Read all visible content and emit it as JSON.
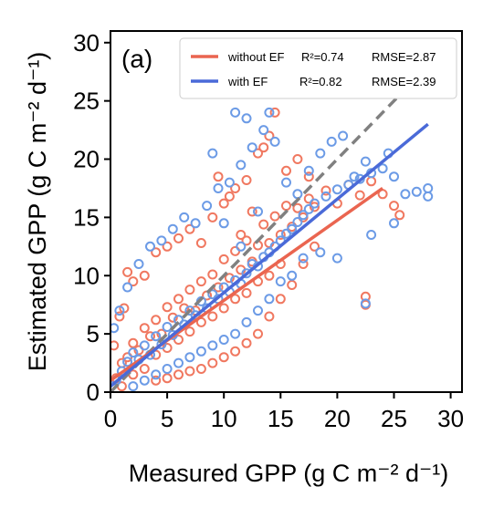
{
  "chart_data": {
    "type": "scatter",
    "panel_label": "(a)",
    "xlabel": "Measured GPP (g C m⁻² d⁻¹)",
    "ylabel": "Estimated GPP (g C m⁻² d⁻¹)",
    "xlim": [
      0,
      31
    ],
    "ylim": [
      0,
      31
    ],
    "xticks": [
      0,
      5,
      10,
      15,
      20,
      25,
      30
    ],
    "yticks": [
      0,
      5,
      10,
      15,
      20,
      25,
      30
    ],
    "grid": false,
    "legend_position": "top-right",
    "series": [
      {
        "name": "without EF",
        "r2_text": "R²=0.74",
        "rmse_text": "RMSE=2.87",
        "color": "#f07860",
        "marker": "open-circle",
        "fit_line": {
          "x": [
            0,
            24
          ],
          "y": [
            1.0,
            17.5
          ]
        },
        "points": [
          [
            0.5,
            1.2
          ],
          [
            1.0,
            2.5
          ],
          [
            1.5,
            3.0
          ],
          [
            2.0,
            4.2
          ],
          [
            2.5,
            3.6
          ],
          [
            3.0,
            5.5
          ],
          [
            3.5,
            4.8
          ],
          [
            4.0,
            6.2
          ],
          [
            4.5,
            5.0
          ],
          [
            5.0,
            7.3
          ],
          [
            5.5,
            6.4
          ],
          [
            6.0,
            8.0
          ],
          [
            6.5,
            7.2
          ],
          [
            7.0,
            8.8
          ],
          [
            7.5,
            7.0
          ],
          [
            8.0,
            9.5
          ],
          [
            8.5,
            8.3
          ],
          [
            9.0,
            10.1
          ],
          [
            9.5,
            9.0
          ],
          [
            10.0,
            11.4
          ],
          [
            10.5,
            9.8
          ],
          [
            11.0,
            12.1
          ],
          [
            11.5,
            10.5
          ],
          [
            12.0,
            13.0
          ],
          [
            12.5,
            11.2
          ],
          [
            13.0,
            12.6
          ],
          [
            13.5,
            14.4
          ],
          [
            14.0,
            12.8
          ],
          [
            14.5,
            15.1
          ],
          [
            15.0,
            13.5
          ],
          [
            15.5,
            16.0
          ],
          [
            16.0,
            14.2
          ],
          [
            16.5,
            15.8
          ],
          [
            17.0,
            15.0
          ],
          [
            17.5,
            16.6
          ],
          [
            18.0,
            15.9
          ],
          [
            19.0,
            17.3
          ],
          [
            20.0,
            16.2
          ],
          [
            21.0,
            17.8
          ],
          [
            22.0,
            16.9
          ],
          [
            23.0,
            18.1
          ],
          [
            24.0,
            17.0
          ],
          [
            25.0,
            16.0
          ],
          [
            25.5,
            15.2
          ],
          [
            1.0,
            0.5
          ],
          [
            2.0,
            1.5
          ],
          [
            3.0,
            2.0
          ],
          [
            4.0,
            3.2
          ],
          [
            5.0,
            3.8
          ],
          [
            6.0,
            4.5
          ],
          [
            7.0,
            5.2
          ],
          [
            8.0,
            6.0
          ],
          [
            9.0,
            6.5
          ],
          [
            10.0,
            7.2
          ],
          [
            11.0,
            8.0
          ],
          [
            12.0,
            8.5
          ],
          [
            13.0,
            9.5
          ],
          [
            14.0,
            10.0
          ],
          [
            15.0,
            11.0
          ],
          [
            0.3,
            4.0
          ],
          [
            0.8,
            6.5
          ],
          [
            1.2,
            7.2
          ],
          [
            2.0,
            9.5
          ],
          [
            1.5,
            10.3
          ],
          [
            3.0,
            10.0
          ],
          [
            4.0,
            12.0
          ],
          [
            5.0,
            12.5
          ],
          [
            6.0,
            13.2
          ],
          [
            7.0,
            14.0
          ],
          [
            8.0,
            12.8
          ],
          [
            9.0,
            15.0
          ],
          [
            10.0,
            16.2
          ],
          [
            11.0,
            17.5
          ],
          [
            12.0,
            18.2
          ],
          [
            13.0,
            20.5
          ],
          [
            14.0,
            22.0
          ],
          [
            14.5,
            24.0
          ],
          [
            13.5,
            21.0
          ],
          [
            9.5,
            18.5
          ],
          [
            10.5,
            16.8
          ],
          [
            11.5,
            13.5
          ],
          [
            12.5,
            15.5
          ],
          [
            15.5,
            19.0
          ],
          [
            16.5,
            20.0
          ],
          [
            17.5,
            18.5
          ],
          [
            22.5,
            8.2
          ],
          [
            22.5,
            7.5
          ],
          [
            18.0,
            12.5
          ],
          [
            17.0,
            11.0
          ],
          [
            16.0,
            9.2
          ],
          [
            15.0,
            8.0
          ],
          [
            14.0,
            6.5
          ],
          [
            13.0,
            5.0
          ],
          [
            12.0,
            4.2
          ],
          [
            11.0,
            3.5
          ],
          [
            10.0,
            3.0
          ],
          [
            9.0,
            2.5
          ],
          [
            8.0,
            2.0
          ],
          [
            7.0,
            1.8
          ],
          [
            6.0,
            1.5
          ],
          [
            5.0,
            1.2
          ],
          [
            4.0,
            1.0
          ]
        ]
      },
      {
        "name": "with EF",
        "r2_text": "R²=0.82",
        "rmse_text": "RMSE=2.39",
        "color": "#6c9be6",
        "marker": "open-circle",
        "fit_line": {
          "x": [
            0,
            28
          ],
          "y": [
            0.5,
            23.0
          ]
        },
        "points": [
          [
            0.5,
            1.0
          ],
          [
            1.0,
            1.8
          ],
          [
            1.5,
            2.6
          ],
          [
            2.0,
            3.4
          ],
          [
            2.5,
            2.8
          ],
          [
            3.0,
            4.0
          ],
          [
            3.5,
            3.2
          ],
          [
            4.0,
            4.8
          ],
          [
            4.5,
            4.1
          ],
          [
            5.0,
            5.6
          ],
          [
            5.5,
            4.9
          ],
          [
            6.0,
            6.2
          ],
          [
            6.5,
            5.8
          ],
          [
            7.0,
            7.0
          ],
          [
            7.5,
            6.6
          ],
          [
            8.0,
            7.8
          ],
          [
            8.5,
            7.2
          ],
          [
            9.0,
            8.4
          ],
          [
            9.5,
            8.0
          ],
          [
            10.0,
            9.0
          ],
          [
            10.5,
            8.6
          ],
          [
            11.0,
            9.6
          ],
          [
            11.5,
            9.3
          ],
          [
            12.0,
            10.2
          ],
          [
            12.5,
            11.0
          ],
          [
            13.0,
            10.8
          ],
          [
            13.5,
            11.6
          ],
          [
            14.0,
            12.0
          ],
          [
            14.5,
            12.5
          ],
          [
            15.0,
            13.0
          ],
          [
            15.5,
            13.6
          ],
          [
            16.0,
            14.0
          ],
          [
            16.5,
            14.6
          ],
          [
            17.0,
            15.2
          ],
          [
            17.5,
            15.7
          ],
          [
            18.0,
            16.2
          ],
          [
            19.0,
            16.8
          ],
          [
            20.0,
            17.4
          ],
          [
            21.0,
            17.8
          ],
          [
            22.0,
            18.3
          ],
          [
            23.0,
            18.8
          ],
          [
            24.0,
            19.2
          ],
          [
            25.0,
            18.5
          ],
          [
            26.0,
            17.0
          ],
          [
            27.0,
            17.2
          ],
          [
            28.0,
            17.5
          ],
          [
            28.0,
            16.8
          ],
          [
            25.0,
            14.5
          ],
          [
            23.0,
            13.5
          ],
          [
            22.5,
            7.6
          ],
          [
            20.0,
            11.5
          ],
          [
            18.5,
            12.0
          ],
          [
            17.0,
            11.5
          ],
          [
            16.0,
            10.0
          ],
          [
            15.0,
            9.5
          ],
          [
            14.0,
            8.0
          ],
          [
            13.0,
            7.0
          ],
          [
            12.0,
            6.0
          ],
          [
            11.0,
            5.0
          ],
          [
            10.0,
            4.5
          ],
          [
            9.0,
            4.0
          ],
          [
            8.0,
            3.5
          ],
          [
            7.0,
            3.0
          ],
          [
            6.0,
            2.5
          ],
          [
            5.0,
            2.0
          ],
          [
            4.0,
            1.5
          ],
          [
            3.0,
            1.0
          ],
          [
            2.0,
            0.5
          ],
          [
            0.3,
            5.5
          ],
          [
            0.8,
            7.0
          ],
          [
            1.5,
            9.0
          ],
          [
            2.5,
            11.0
          ],
          [
            3.5,
            12.5
          ],
          [
            4.5,
            13.0
          ],
          [
            5.5,
            14.0
          ],
          [
            6.5,
            15.0
          ],
          [
            7.5,
            14.5
          ],
          [
            8.5,
            16.0
          ],
          [
            9.5,
            17.5
          ],
          [
            10.5,
            18.0
          ],
          [
            11.5,
            19.5
          ],
          [
            12.5,
            21.0
          ],
          [
            13.5,
            22.5
          ],
          [
            14.0,
            24.0
          ],
          [
            14.5,
            21.5
          ],
          [
            11.0,
            24.0
          ],
          [
            12.0,
            23.5
          ],
          [
            9.0,
            20.5
          ],
          [
            10.0,
            14.5
          ],
          [
            11.5,
            12.5
          ],
          [
            13.0,
            15.5
          ],
          [
            15.5,
            18.0
          ],
          [
            16.5,
            17.0
          ],
          [
            17.5,
            19.0
          ],
          [
            18.5,
            20.5
          ],
          [
            19.5,
            21.5
          ],
          [
            20.5,
            22.0
          ],
          [
            21.5,
            18.5
          ],
          [
            22.5,
            19.8
          ],
          [
            24.5,
            20.5
          ]
        ]
      }
    ],
    "reference_line": {
      "type": "1:1",
      "style": "dashed",
      "color": "#808080"
    }
  }
}
